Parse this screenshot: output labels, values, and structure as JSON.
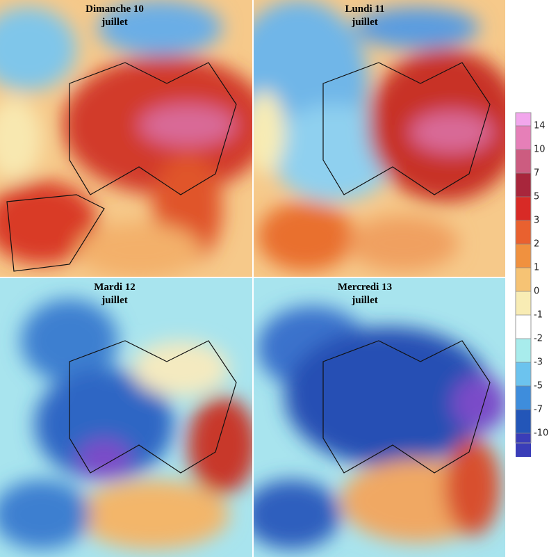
{
  "panels": [
    {
      "line1": "Dimanche 10",
      "line2": "juillet"
    },
    {
      "line1": "Lundi 11",
      "line2": "juillet"
    },
    {
      "line1": "Mardi 12",
      "line2": "juillet"
    },
    {
      "line1": "Mercredi 13",
      "line2": "juillet"
    }
  ],
  "legend": {
    "ticks": [
      14,
      10,
      7,
      5,
      3,
      2,
      1,
      0,
      -1,
      -2,
      -3,
      -5,
      -7,
      -10
    ],
    "colors": [
      "#f2a6ec",
      "#e67fb8",
      "#cc5c80",
      "#a8263c",
      "#d82a26",
      "#e9612f",
      "#f0913f",
      "#f6c374",
      "#f8ecb4",
      "#ffffff",
      "#a8ecec",
      "#6cc3ee",
      "#3e8ddc",
      "#2356b8",
      "#3a3db8",
      "#8f55dc"
    ]
  }
}
